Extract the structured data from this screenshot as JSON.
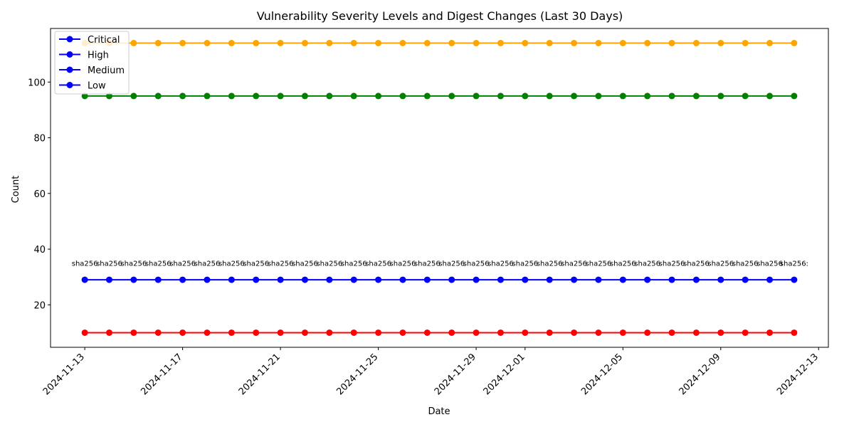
{
  "chart_data": {
    "type": "line",
    "title": "Vulnerability Severity Levels and Digest Changes (Last 30 Days)",
    "xlabel": "Date",
    "ylabel": "Count",
    "x_start": "2024-11-13",
    "x": [
      "2024-11-13",
      "2024-11-14",
      "2024-11-15",
      "2024-11-16",
      "2024-11-17",
      "2024-11-18",
      "2024-11-19",
      "2024-11-20",
      "2024-11-21",
      "2024-11-22",
      "2024-11-23",
      "2024-11-24",
      "2024-11-25",
      "2024-11-26",
      "2024-11-27",
      "2024-11-28",
      "2024-11-29",
      "2024-11-30",
      "2024-12-01",
      "2024-12-02",
      "2024-12-03",
      "2024-12-04",
      "2024-12-05",
      "2024-12-06",
      "2024-12-07",
      "2024-12-08",
      "2024-12-09",
      "2024-12-10",
      "2024-12-11",
      "2024-12-12"
    ],
    "x_ticks": [
      "2024-11-13",
      "2024-11-17",
      "2024-11-21",
      "2024-11-25",
      "2024-11-29",
      "2024-12-01",
      "2024-12-05",
      "2024-12-09",
      "2024-12-13"
    ],
    "xlim": [
      "2024-11-11.6",
      "2024-12-13.4"
    ],
    "y_ticks": [
      20,
      40,
      60,
      80,
      100
    ],
    "ylim": [
      4.75,
      119.25
    ],
    "series": [
      {
        "name": "Critical",
        "color": "#ff0000",
        "values": [
          10,
          10,
          10,
          10,
          10,
          10,
          10,
          10,
          10,
          10,
          10,
          10,
          10,
          10,
          10,
          10,
          10,
          10,
          10,
          10,
          10,
          10,
          10,
          10,
          10,
          10,
          10,
          10,
          10,
          10
        ]
      },
      {
        "name": "High",
        "color": "#ffa500",
        "values": [
          114,
          114,
          114,
          114,
          114,
          114,
          114,
          114,
          114,
          114,
          114,
          114,
          114,
          114,
          114,
          114,
          114,
          114,
          114,
          114,
          114,
          114,
          114,
          114,
          114,
          114,
          114,
          114,
          114,
          114
        ]
      },
      {
        "name": "Medium",
        "color": "#008000",
        "values": [
          95,
          95,
          95,
          95,
          95,
          95,
          95,
          95,
          95,
          95,
          95,
          95,
          95,
          95,
          95,
          95,
          95,
          95,
          95,
          95,
          95,
          95,
          95,
          95,
          95,
          95,
          95,
          95,
          95,
          95
        ]
      },
      {
        "name": "Low",
        "color": "#0000ff",
        "values": [
          29,
          29,
          29,
          29,
          29,
          29,
          29,
          29,
          29,
          29,
          29,
          29,
          29,
          29,
          29,
          29,
          29,
          29,
          29,
          29,
          29,
          29,
          29,
          29,
          29,
          29,
          29,
          29,
          29,
          29
        ]
      }
    ],
    "annotations": [
      "sha256",
      "sha256",
      "sha256",
      "sha256",
      "sha256",
      "sha256",
      "sha256",
      "sha256",
      "sha256",
      "sha256",
      "sha256",
      "sha256",
      "sha256",
      "sha256",
      "sha256",
      "sha256",
      "sha256",
      "sha256",
      "sha256",
      "sha256",
      "sha256",
      "sha256",
      "sha256",
      "sha256",
      "sha256",
      "sha256",
      "sha256",
      "sha256",
      "sha256",
      "sha256:"
    ],
    "annotation_y": 35,
    "legend": {
      "placement": "top-left",
      "marker_color": "#0000ff",
      "entries": [
        "Critical",
        "High",
        "Medium",
        "Low"
      ]
    },
    "grid": false
  }
}
